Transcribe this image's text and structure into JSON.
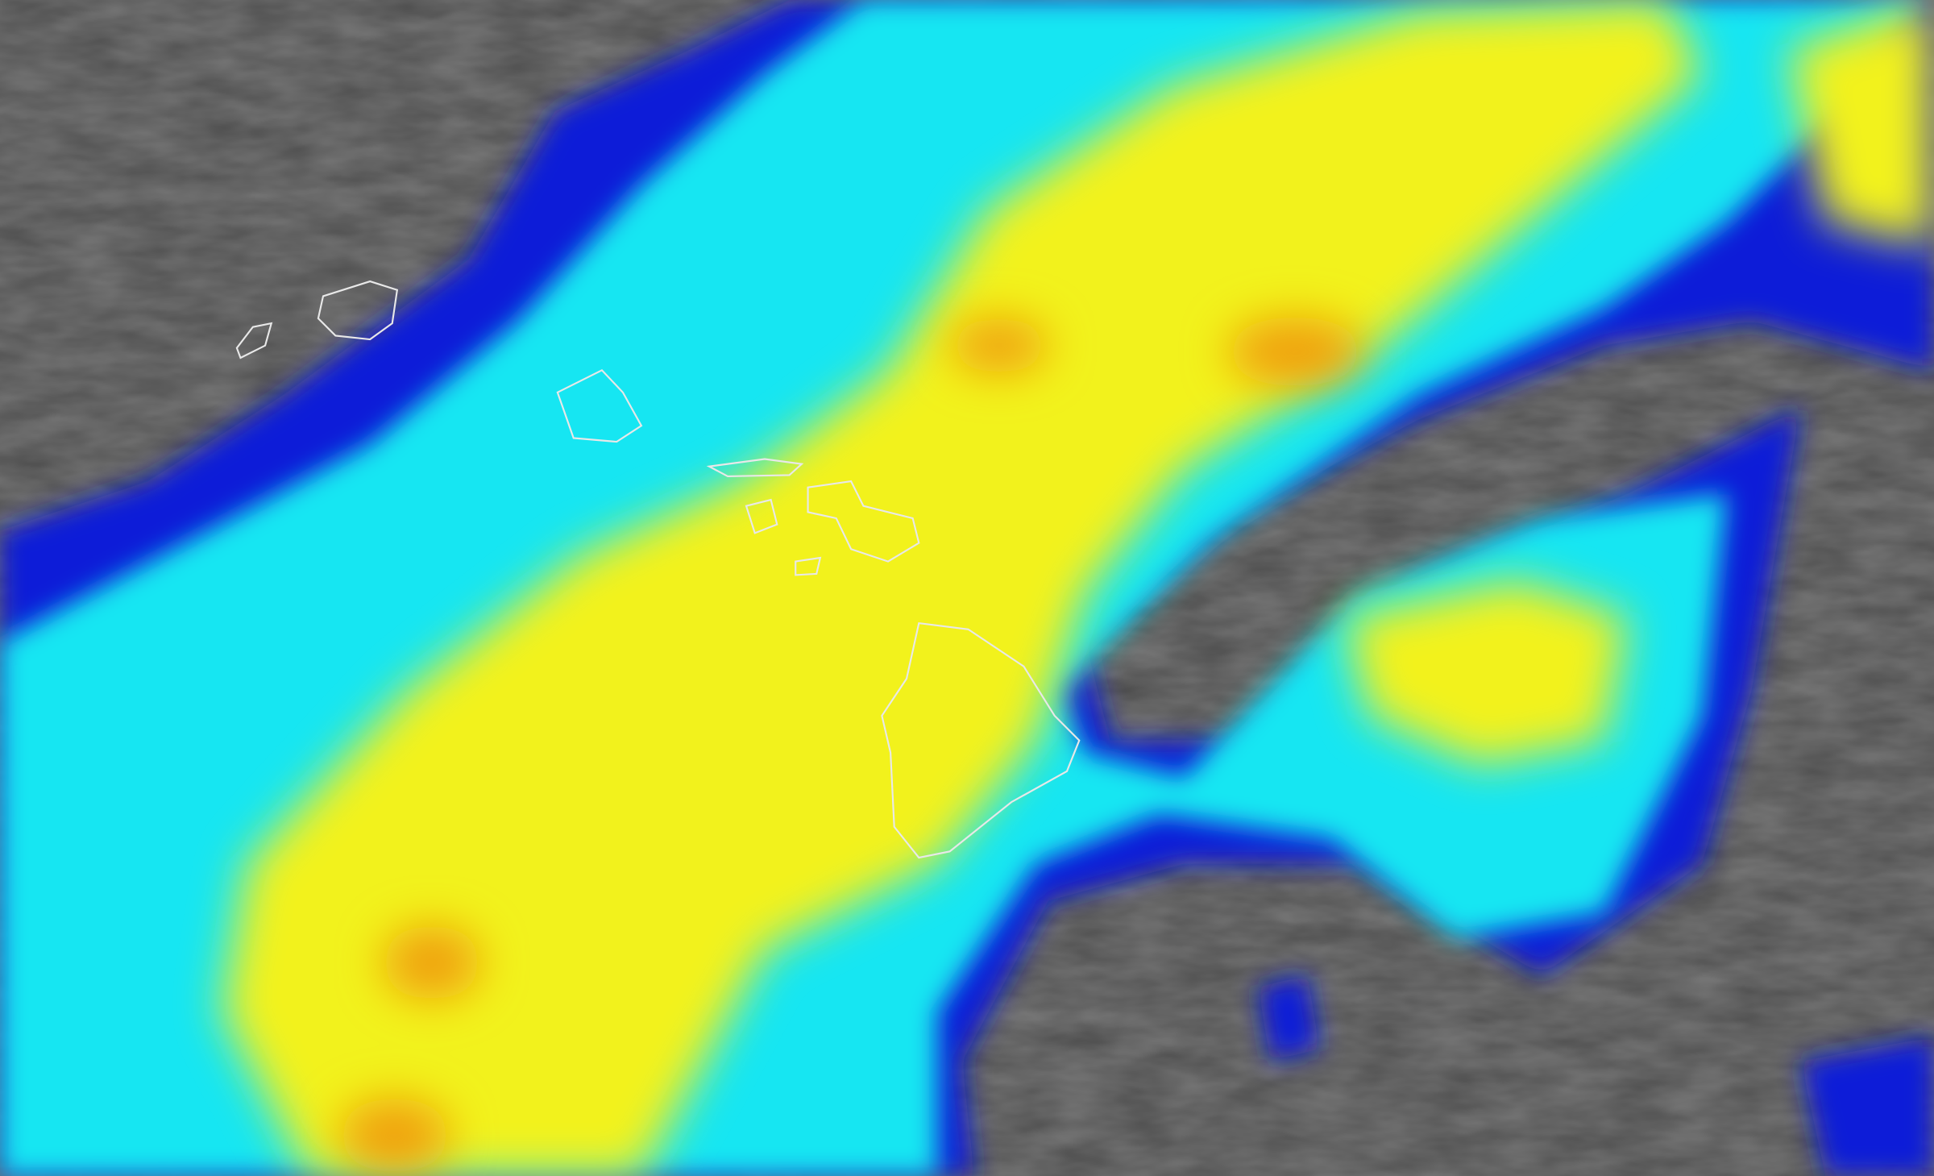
{
  "imagery": {
    "kind": "infrared satellite cloud imagery with coastline outlines",
    "colors": {
      "clear_sky": "#4d4d4d",
      "cloud_low": "#0a1fd8",
      "cloud_mid": "#19e6f2",
      "cloud_high": "#f2f21a",
      "cloud_top": "#f0a010",
      "coastline": "#e8e8e8"
    }
  }
}
